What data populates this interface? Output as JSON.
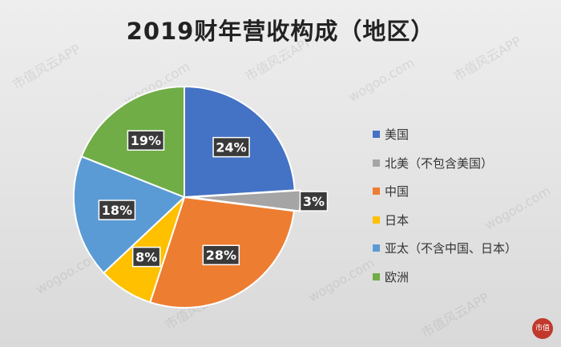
{
  "chart_data": {
    "type": "pie",
    "title": "2019财年营收构成（地区）",
    "categories": [
      "美国",
      "北美（不包含美国）",
      "中国",
      "日本",
      "亚太（不含中国、日本）",
      "欧洲"
    ],
    "values": [
      24,
      3,
      28,
      8,
      18,
      19
    ],
    "data_labels": [
      "24%",
      "3%",
      "28%",
      "8%",
      "18%",
      "19%"
    ],
    "colors": [
      "#4472c4",
      "#a5a5a5",
      "#ed7d31",
      "#ffc000",
      "#5b9bd5",
      "#70ad47"
    ],
    "legend": "right",
    "start": "12 o'clock, clockwise"
  },
  "watermark": {
    "app_text": "市值风云APP",
    "site_text": "wogoo.com"
  },
  "badge": {
    "text": "市值"
  }
}
